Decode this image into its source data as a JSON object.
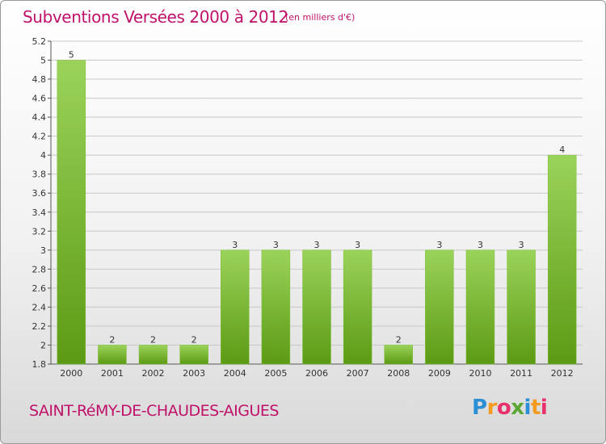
{
  "header": {
    "title": "Subventions Versées 2000 à 2012",
    "unit_note": "(en milliers d'€)"
  },
  "footer": {
    "commune": "SAINT-RéMY-DE-CHAUDES-AIGUES",
    "logo": "Proxiti"
  },
  "colors": {
    "title": "#c0116a",
    "bar_top": "#9bd35a",
    "bar_bottom": "#5c9a14",
    "grid": "#c8c8c8"
  },
  "chart_data": {
    "type": "bar",
    "title": "Subventions Versées 2000 à 2012",
    "xlabel": "",
    "ylabel": "",
    "categories": [
      "2000",
      "2001",
      "2002",
      "2003",
      "2004",
      "2005",
      "2006",
      "2007",
      "2008",
      "2009",
      "2010",
      "2011",
      "2012"
    ],
    "values": [
      5,
      2,
      2,
      2,
      3,
      3,
      3,
      3,
      2,
      3,
      3,
      3,
      4
    ],
    "ylim": [
      1.8,
      5.2
    ],
    "yticks": [
      "5.2",
      "5",
      "4.8",
      "4.6",
      "4.4",
      "4.2",
      "4",
      "3.8",
      "3.6",
      "3.4",
      "3.2",
      "3",
      "2.8",
      "2.6",
      "2.4",
      "2.2",
      "2",
      "1.8"
    ],
    "grid": true
  }
}
